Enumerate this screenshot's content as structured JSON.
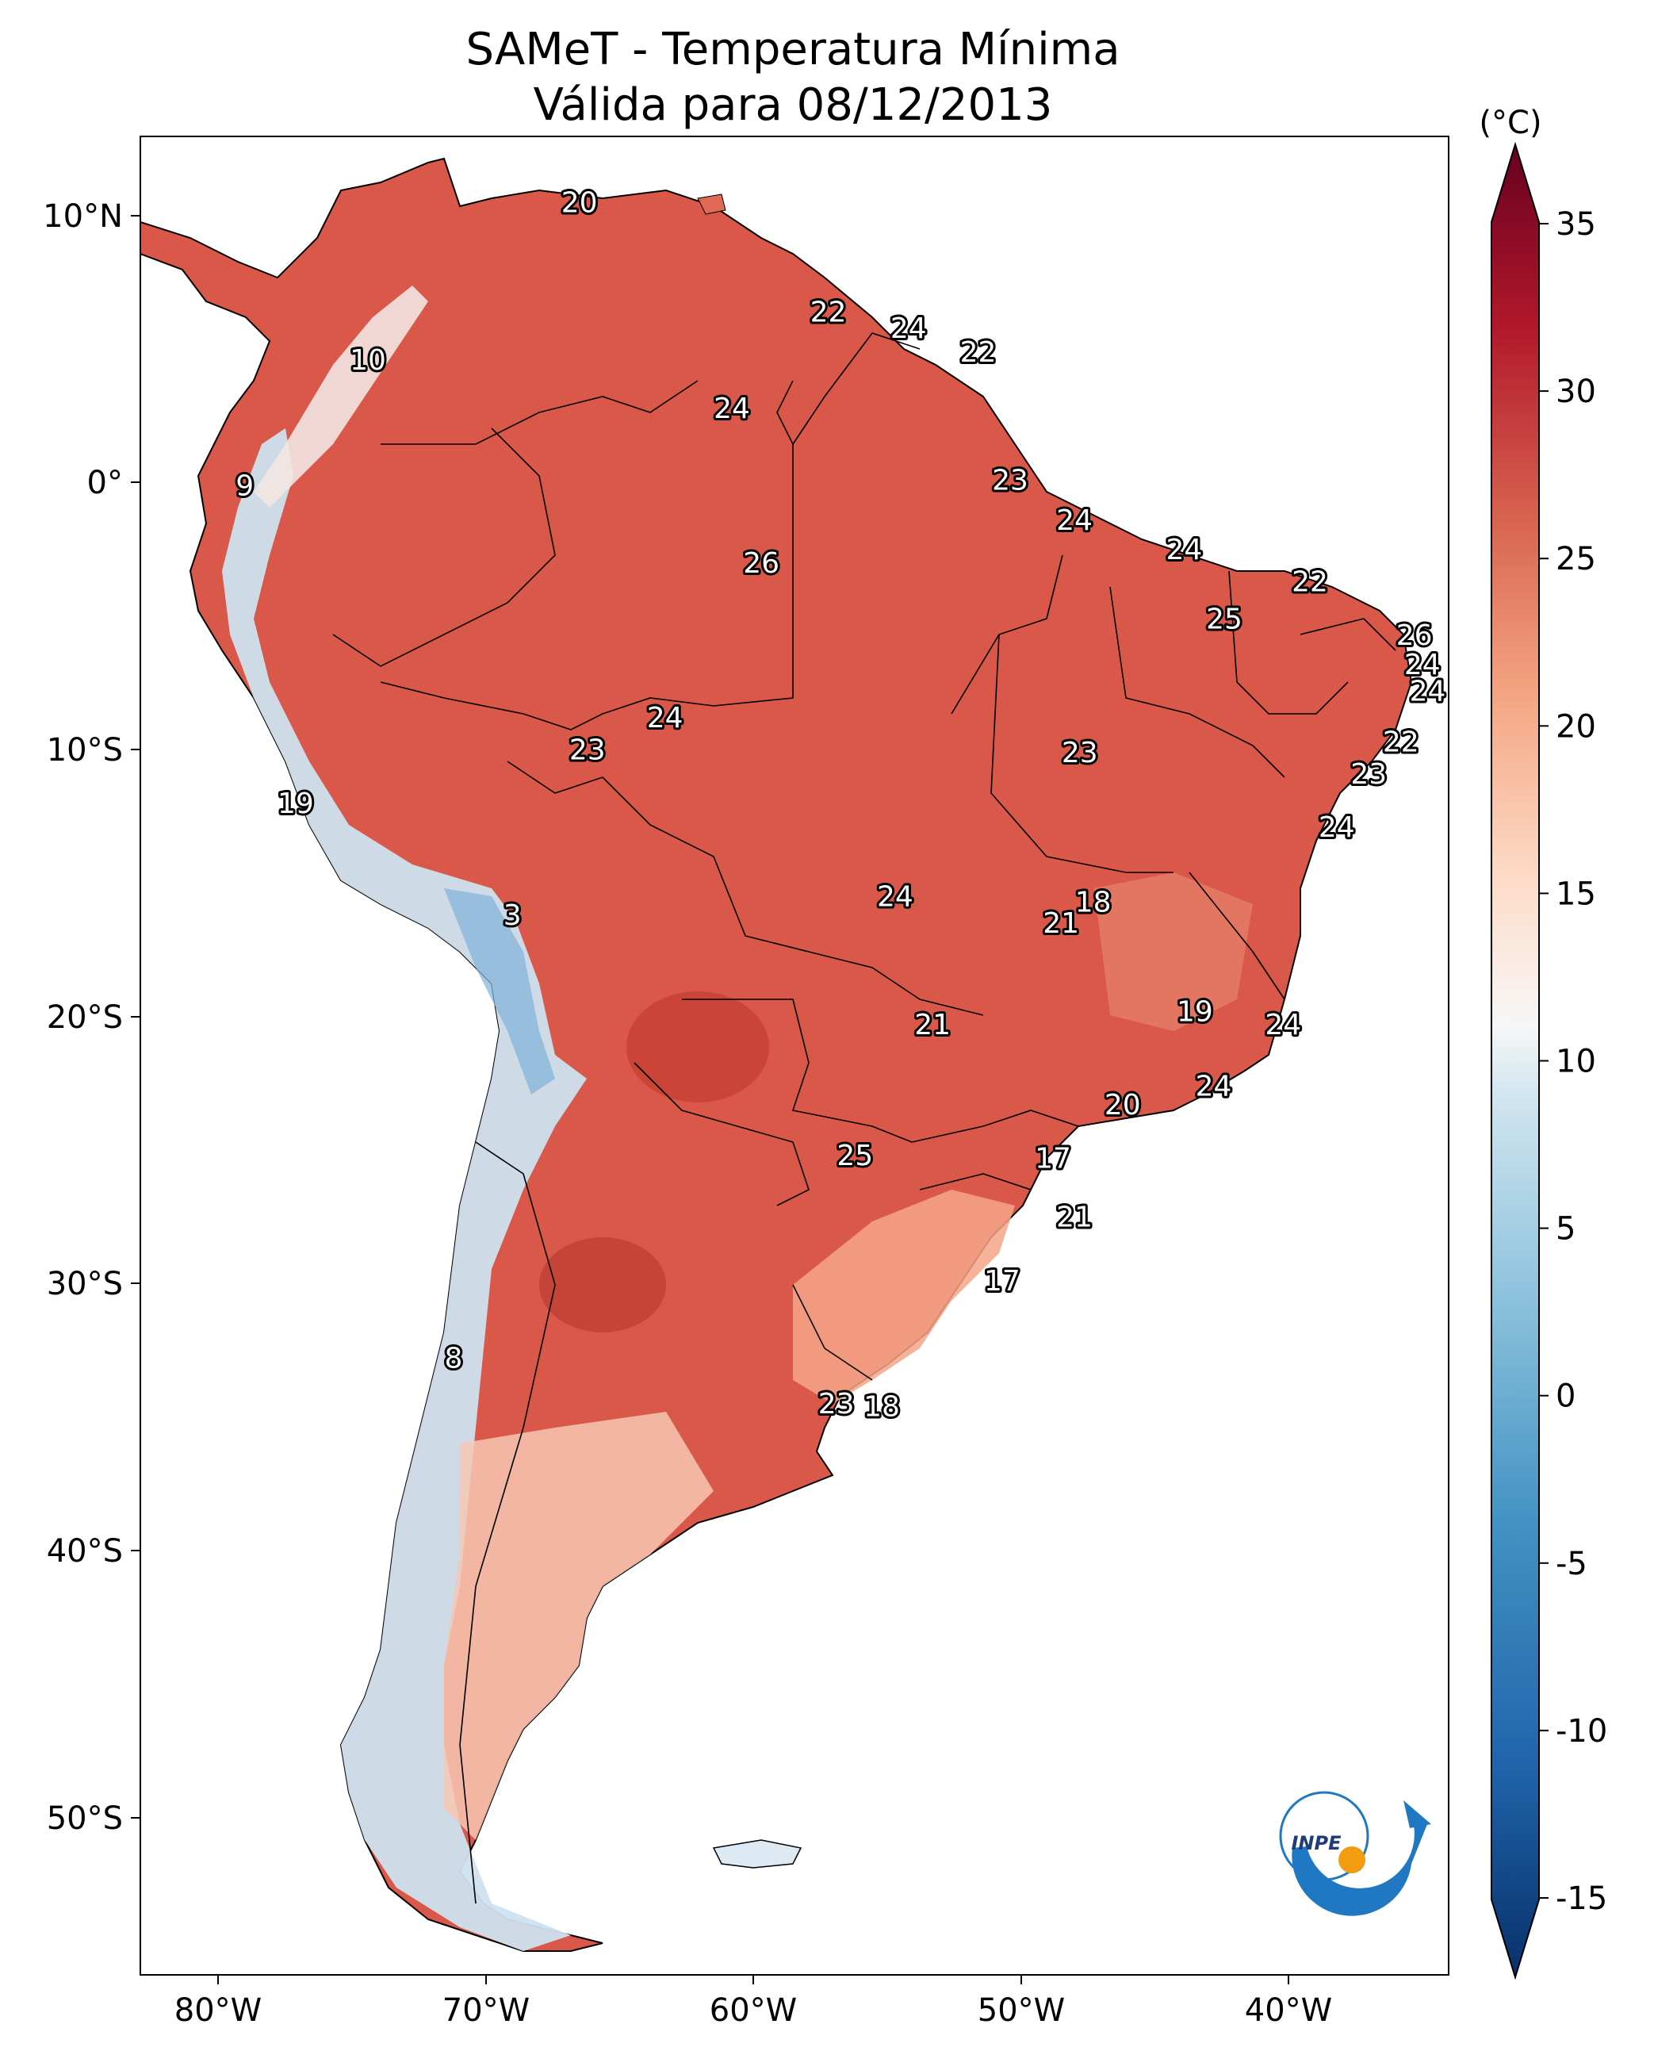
{
  "title": {
    "line1": "SAMeT - Temperatura Mínima",
    "line2": "Válida para 08/12/2013"
  },
  "colorbar": {
    "unit": "(°C)",
    "ticks": [
      "35",
      "30",
      "25",
      "20",
      "15",
      "10",
      "5",
      "0",
      "-5",
      "-10",
      "-15"
    ],
    "min": -15,
    "max": 35
  },
  "axes": {
    "lon_ticks": [
      "80°W",
      "70°W",
      "60°W",
      "50°W",
      "40°W"
    ],
    "lat_ticks": [
      "10°N",
      "0°",
      "10°S",
      "20°S",
      "30°S",
      "40°S",
      "50°S"
    ]
  },
  "logo": {
    "text": "INPE",
    "colors": {
      "blue": "#1f78c1",
      "orange": "#f39c12"
    }
  },
  "colors": {
    "warm": "#d9584a",
    "hot": "#b9232c",
    "mild": "#f2a487",
    "neutral": "#f7f1ee",
    "cold": "#c6dbef",
    "colder": "#6baed6"
  },
  "labels": [
    {
      "v": "20",
      "lon": -66.5,
      "lat": 10.5
    },
    {
      "v": "22",
      "lon": -57.2,
      "lat": 6.4
    },
    {
      "v": "24",
      "lon": -54.2,
      "lat": 5.8
    },
    {
      "v": "22",
      "lon": -51.6,
      "lat": 4.9
    },
    {
      "v": "10",
      "lon": -74.4,
      "lat": 4.6
    },
    {
      "v": "24",
      "lon": -60.8,
      "lat": 2.8
    },
    {
      "v": "23",
      "lon": -50.4,
      "lat": 0.1
    },
    {
      "v": "9",
      "lon": -79.0,
      "lat": -0.1
    },
    {
      "v": "24",
      "lon": -48.0,
      "lat": -1.4
    },
    {
      "v": "24",
      "lon": -43.9,
      "lat": -2.5
    },
    {
      "v": "26",
      "lon": -59.7,
      "lat": -3.0
    },
    {
      "v": "22",
      "lon": -39.2,
      "lat": -3.7
    },
    {
      "v": "25",
      "lon": -42.4,
      "lat": -5.1
    },
    {
      "v": "26",
      "lon": -35.3,
      "lat": -5.7
    },
    {
      "v": "24",
      "lon": -35.0,
      "lat": -6.8
    },
    {
      "v": "24",
      "lon": -34.8,
      "lat": -7.8
    },
    {
      "v": "24",
      "lon": -63.3,
      "lat": -8.8
    },
    {
      "v": "22",
      "lon": -35.8,
      "lat": -9.7
    },
    {
      "v": "23",
      "lon": -66.2,
      "lat": -10.0
    },
    {
      "v": "23",
      "lon": -47.8,
      "lat": -10.1
    },
    {
      "v": "23",
      "lon": -37.0,
      "lat": -10.9
    },
    {
      "v": "19",
      "lon": -77.1,
      "lat": -12.0
    },
    {
      "v": "24",
      "lon": -38.2,
      "lat": -12.9
    },
    {
      "v": "24",
      "lon": -54.7,
      "lat": -15.5
    },
    {
      "v": "18",
      "lon": -47.3,
      "lat": -15.7
    },
    {
      "v": "3",
      "lon": -69.0,
      "lat": -16.2
    },
    {
      "v": "21",
      "lon": -48.5,
      "lat": -16.5
    },
    {
      "v": "19",
      "lon": -43.5,
      "lat": -19.8
    },
    {
      "v": "24",
      "lon": -40.2,
      "lat": -20.3
    },
    {
      "v": "21",
      "lon": -53.3,
      "lat": -20.3
    },
    {
      "v": "24",
      "lon": -42.8,
      "lat": -22.6
    },
    {
      "v": "20",
      "lon": -46.2,
      "lat": -23.3
    },
    {
      "v": "25",
      "lon": -56.2,
      "lat": -25.2
    },
    {
      "v": "17",
      "lon": -48.8,
      "lat": -25.3
    },
    {
      "v": "21",
      "lon": -48.0,
      "lat": -27.5
    },
    {
      "v": "17",
      "lon": -50.7,
      "lat": -29.9
    },
    {
      "v": "8",
      "lon": -71.2,
      "lat": -32.8
    },
    {
      "v": "23",
      "lon": -56.9,
      "lat": -34.5
    },
    {
      "v": "18",
      "lon": -55.2,
      "lat": -34.6
    }
  ]
}
